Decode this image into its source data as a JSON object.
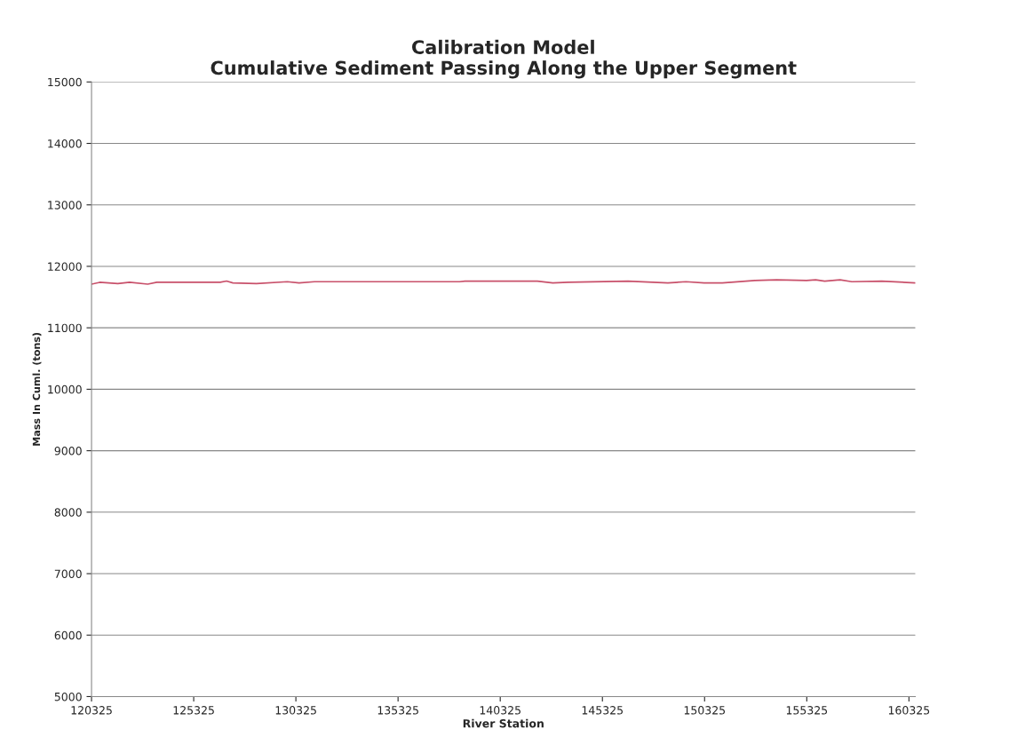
{
  "chart_data": {
    "type": "line",
    "title": "Calibration Model\nCumulative Sediment Passing Along the Upper Segment",
    "xlabel": "River Station",
    "ylabel": "Mass In Cuml. (tons)",
    "x": [
      120325,
      120724,
      121611,
      122188,
      123074,
      123518,
      126622,
      126933,
      127243,
      128396,
      129904,
      130480,
      131234,
      138330,
      138596,
      140236,
      142143,
      142897,
      143651,
      146578,
      148529,
      149416,
      150303,
      151190,
      152786,
      153851,
      155314,
      155758,
      156201,
      156955,
      157532,
      158995,
      160636
    ],
    "series": [
      {
        "color": "#c8506a",
        "values": [
          11710,
          11740,
          11720,
          11740,
          11710,
          11740,
          11740,
          11760,
          11730,
          11720,
          11750,
          11730,
          11750,
          11750,
          11760,
          11760,
          11760,
          11730,
          11740,
          11760,
          11730,
          11750,
          11730,
          11730,
          11770,
          11780,
          11770,
          11780,
          11760,
          11780,
          11750,
          11760,
          11730
        ]
      }
    ],
    "xlim": [
      120325,
      160636
    ],
    "xticks": [
      120325,
      125325,
      130325,
      135325,
      140325,
      145325,
      150325,
      155325,
      160325
    ],
    "ylim": [
      5000,
      15000
    ],
    "yticks": [
      5000,
      6000,
      7000,
      8000,
      9000,
      10000,
      11000,
      12000,
      13000,
      14000,
      15000
    ],
    "grid": "y",
    "legend": false
  }
}
